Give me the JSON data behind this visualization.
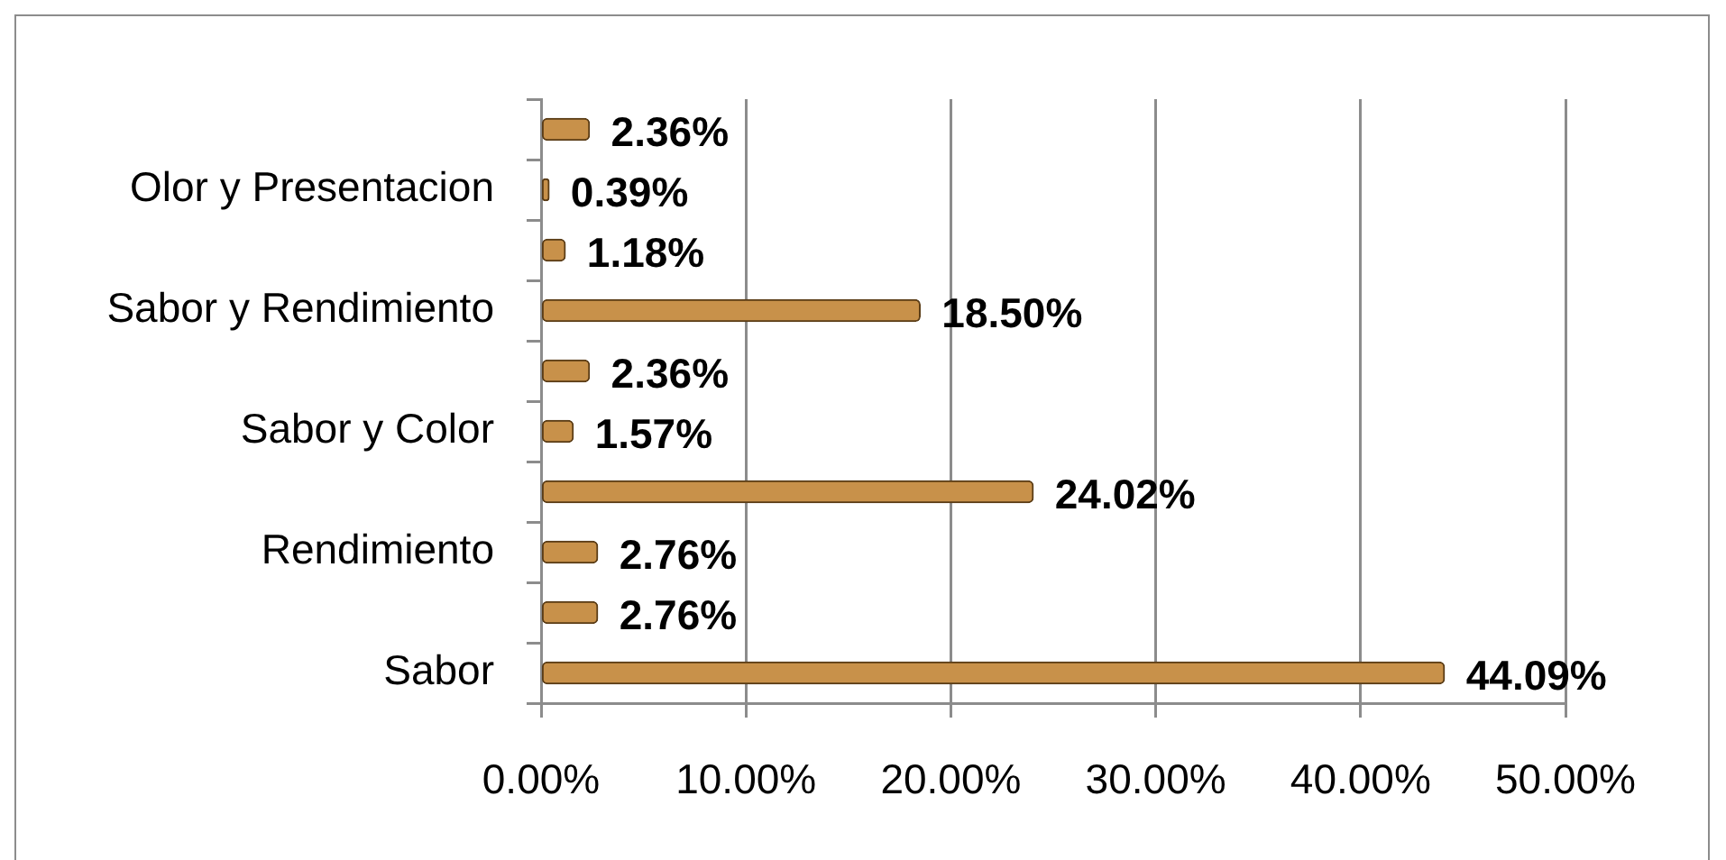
{
  "chart_data": {
    "type": "bar",
    "orientation": "horizontal",
    "categories": [
      null,
      "Olor y Presentacion",
      null,
      "Sabor y Rendimiento",
      null,
      "Sabor y Color",
      null,
      "Rendimiento",
      null,
      "Sabor"
    ],
    "values": [
      2.36,
      0.39,
      1.18,
      18.5,
      2.36,
      1.57,
      24.02,
      2.76,
      2.76,
      44.09
    ],
    "value_labels": [
      "2.36%",
      "0.39%",
      "1.18%",
      "18.50%",
      "2.36%",
      "1.57%",
      "24.02%",
      "2.76%",
      "2.76%",
      "44.09%"
    ],
    "color": "#c8914a",
    "xlim": [
      0,
      50
    ],
    "xticks": [
      {
        "value": 0,
        "label": "0.00%"
      },
      {
        "value": 10,
        "label": "10.00%"
      },
      {
        "value": 20,
        "label": "20.00%"
      },
      {
        "value": 30,
        "label": "30.00%"
      },
      {
        "value": 40,
        "label": "40.00%"
      },
      {
        "value": 50,
        "label": "50.00%"
      }
    ],
    "grid": "x"
  }
}
